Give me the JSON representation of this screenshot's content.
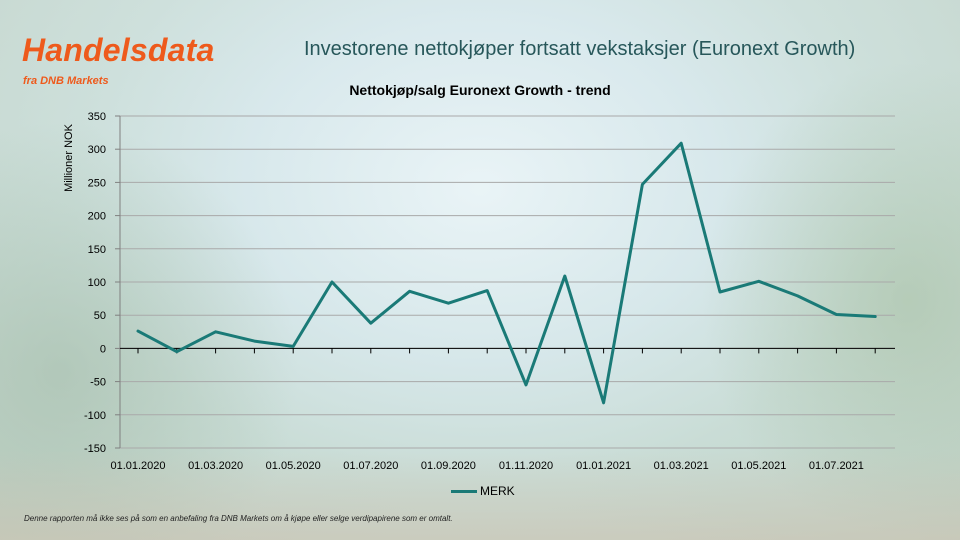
{
  "logo": {
    "title": "Handelsdata",
    "subtitle": "fra DNB Markets"
  },
  "heading": "Investorene nettokjøper fortsatt vekstaksjer (Euronext Growth)",
  "footer": "Denne rapporten må ikke ses på som en anbefaling fra DNB Markets om å kjøpe eller selge verdipapirene som er omtalt.",
  "colors": {
    "brand": "#ee5a1c",
    "heading": "#27575a",
    "series": "#1a7a77"
  },
  "chart_data": {
    "type": "line",
    "title": "Nettokjøp/salg Euronext Growth - trend",
    "xlabel": "",
    "ylabel": "Millioner NOK",
    "ylim": [
      -150,
      350
    ],
    "yticks": [
      -150,
      -100,
      -50,
      0,
      50,
      100,
      150,
      200,
      250,
      300,
      350
    ],
    "x_tick_labels": [
      "01.01.2020",
      "01.03.2020",
      "01.05.2020",
      "01.07.2020",
      "01.09.2020",
      "01.11.2020",
      "01.01.2021",
      "01.03.2021",
      "01.05.2021",
      "01.07.2021"
    ],
    "x": [
      "2020-01",
      "2020-02",
      "2020-03",
      "2020-04",
      "2020-05",
      "2020-06",
      "2020-07",
      "2020-08",
      "2020-09",
      "2020-10",
      "2020-11",
      "2020-12",
      "2021-01",
      "2021-02",
      "2021-03",
      "2021-04",
      "2021-05",
      "2021-06",
      "2021-07",
      "2021-08"
    ],
    "series": [
      {
        "name": "MERK",
        "values": [
          26,
          -5,
          25,
          11,
          3,
          100,
          38,
          86,
          68,
          87,
          -55,
          109,
          -82,
          247,
          309,
          85,
          101,
          79,
          51,
          48
        ]
      }
    ],
    "grid": "horizontal",
    "legend": "bottom"
  }
}
